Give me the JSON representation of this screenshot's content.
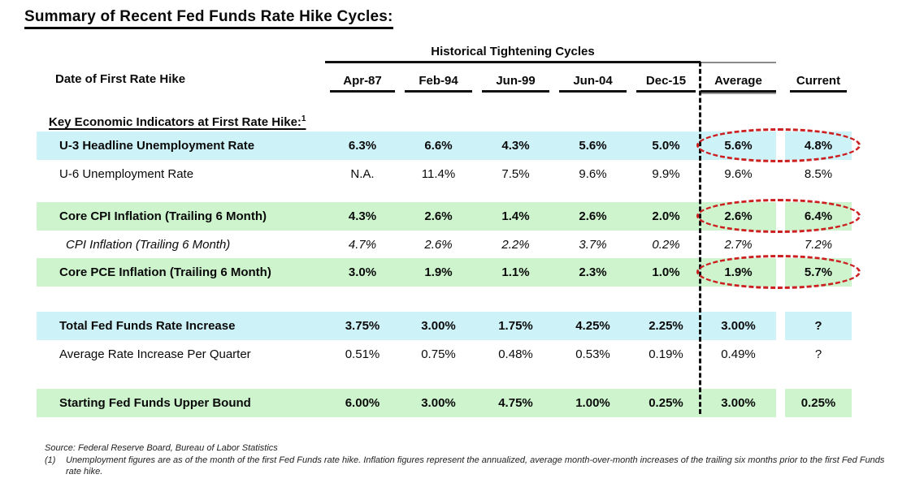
{
  "title": "Summary of Recent Fed Funds Rate Hike Cycles:",
  "table": {
    "group_header": "Historical Tightening Cycles",
    "row_axis_label": "Date of First Rate Hike",
    "columns": [
      "Apr-87",
      "Feb-94",
      "Jun-99",
      "Jun-04",
      "Dec-15",
      "Average",
      "Current"
    ],
    "section_header": "Key Economic Indicators at First Rate Hike:",
    "section_header_footnote": "1",
    "rows": [
      {
        "label": "U-3 Headline Unemployment Rate",
        "style": "cyan",
        "bold": true,
        "circled": true,
        "values": [
          "6.3%",
          "6.6%",
          "4.3%",
          "5.6%",
          "5.0%",
          "5.6%",
          "4.8%"
        ]
      },
      {
        "label": "U-6 Unemployment Rate",
        "style": "plain",
        "bold": false,
        "circled": false,
        "values": [
          "N.A.",
          "11.4%",
          "7.5%",
          "9.6%",
          "9.9%",
          "9.6%",
          "8.5%"
        ]
      },
      {
        "label": "Core CPI Inflation (Trailing 6 Month)",
        "style": "green",
        "bold": true,
        "circled": true,
        "values": [
          "4.3%",
          "2.6%",
          "1.4%",
          "2.6%",
          "2.0%",
          "2.6%",
          "6.4%"
        ]
      },
      {
        "label": "CPI Inflation (Trailing 6 Month)",
        "style": "italic",
        "bold": false,
        "circled": false,
        "values": [
          "4.7%",
          "2.6%",
          "2.2%",
          "3.7%",
          "0.2%",
          "2.7%",
          "7.2%"
        ]
      },
      {
        "label": "Core PCE Inflation (Trailing 6 Month)",
        "style": "green",
        "bold": true,
        "circled": true,
        "values": [
          "3.0%",
          "1.9%",
          "1.1%",
          "2.3%",
          "1.0%",
          "1.9%",
          "5.7%"
        ]
      },
      {
        "label": "Total Fed Funds Rate Increase",
        "style": "cyan",
        "bold": true,
        "circled": false,
        "values": [
          "3.75%",
          "3.00%",
          "1.75%",
          "4.25%",
          "2.25%",
          "3.00%",
          "?"
        ]
      },
      {
        "label": "Average Rate Increase Per Quarter",
        "style": "plain",
        "bold": false,
        "circled": false,
        "values": [
          "0.51%",
          "0.75%",
          "0.48%",
          "0.53%",
          "0.19%",
          "0.49%",
          "?"
        ]
      },
      {
        "label": "Starting Fed Funds Upper Bound",
        "style": "green",
        "bold": true,
        "circled": false,
        "values": [
          "6.00%",
          "3.00%",
          "4.75%",
          "1.00%",
          "0.25%",
          "3.00%",
          "0.25%"
        ]
      }
    ]
  },
  "footer": {
    "source": "Source: Federal Reserve Board, Bureau of Labor Statistics",
    "note_number": "(1)",
    "note_text": "Unemployment figures are as of the month of the first Fed Funds rate hike. Inflation figures represent the annualized, average month-over-month increases of the trailing six months prior to the first Fed Funds rate hike."
  },
  "colors": {
    "cyan_highlight": "#CDF2F8",
    "green_highlight": "#CDF4CD",
    "circle_red": "#CC2020",
    "divider_black": "#111111"
  }
}
